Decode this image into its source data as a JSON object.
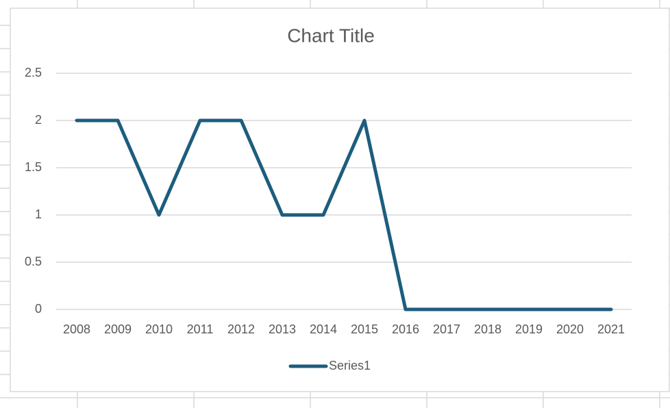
{
  "chart_data": {
    "type": "line",
    "title": "Chart Title",
    "categories": [
      "2008",
      "2009",
      "2010",
      "2011",
      "2012",
      "2013",
      "2014",
      "2015",
      "2016",
      "2017",
      "2018",
      "2019",
      "2020",
      "2021"
    ],
    "series": [
      {
        "name": "Series1",
        "color": "#1d5d7e",
        "values": [
          2,
          2,
          1,
          2,
          2,
          1,
          1,
          2,
          0,
          0,
          0,
          0,
          0,
          0
        ]
      }
    ],
    "ylim": [
      0,
      2.5
    ],
    "yticks": [
      0,
      0.5,
      1,
      1.5,
      2,
      2.5
    ],
    "grid": true,
    "legend": "bottom"
  }
}
